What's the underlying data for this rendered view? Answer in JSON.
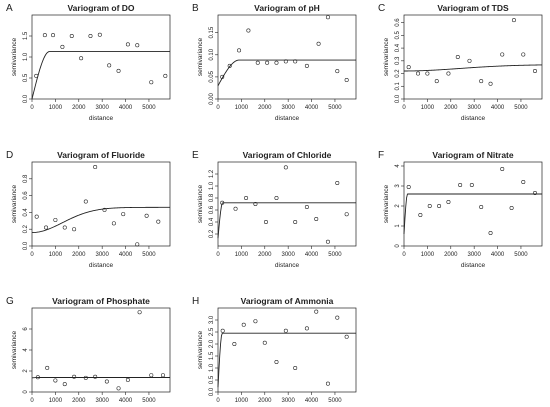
{
  "chart_data": [
    {
      "type": "scatter",
      "letter": "A",
      "title": "Variogram of DO",
      "xlabel": "distance",
      "ylabel": "semivariance",
      "xlim": [
        0,
        5900
      ],
      "ylim": [
        0,
        2.0
      ],
      "xticks": [
        0,
        1000,
        2000,
        3000,
        4000,
        5000
      ],
      "xticklabels": [
        "0",
        "1000",
        "2000",
        "3000",
        "4000",
        "5000"
      ],
      "yticks": [
        0,
        0.5,
        1.0,
        1.5
      ],
      "yticklabels": [
        "0.0",
        "0.5",
        "1.0",
        "1.5"
      ],
      "points": [
        [
          180,
          0.55
        ],
        [
          550,
          1.52
        ],
        [
          900,
          1.52
        ],
        [
          1300,
          1.24
        ],
        [
          1700,
          1.5
        ],
        [
          2100,
          0.97
        ],
        [
          2500,
          1.5
        ],
        [
          2900,
          1.53
        ],
        [
          3300,
          0.8
        ],
        [
          3700,
          0.67
        ],
        [
          4100,
          1.3
        ],
        [
          4500,
          1.28
        ],
        [
          5100,
          0.4
        ],
        [
          5700,
          0.55
        ]
      ],
      "model": {
        "nugget": 0.0,
        "sill": 1.13,
        "range": 750,
        "kind": "spherical"
      }
    },
    {
      "type": "scatter",
      "letter": "B",
      "title": "Variogram of pH",
      "xlabel": "distance",
      "ylabel": "semivariance",
      "xlim": [
        0,
        5900
      ],
      "ylim": [
        0,
        0.19
      ],
      "xticks": [
        0,
        1000,
        2000,
        3000,
        4000,
        5000
      ],
      "xticklabels": [
        "0",
        "1000",
        "2000",
        "3000",
        "4000",
        "5000"
      ],
      "yticks": [
        0,
        0.05,
        0.1,
        0.15
      ],
      "yticklabels": [
        "0.00",
        "0.05",
        "0.10",
        "0.15"
      ],
      "points": [
        [
          180,
          0.05
        ],
        [
          500,
          0.075
        ],
        [
          900,
          0.11
        ],
        [
          1300,
          0.155
        ],
        [
          1700,
          0.082
        ],
        [
          2100,
          0.082
        ],
        [
          2500,
          0.082
        ],
        [
          2900,
          0.085
        ],
        [
          3300,
          0.085
        ],
        [
          3800,
          0.075
        ],
        [
          4300,
          0.125
        ],
        [
          4700,
          0.185
        ],
        [
          5100,
          0.063
        ],
        [
          5500,
          0.043
        ]
      ],
      "model": {
        "nugget": 0.03,
        "sill": 0.088,
        "range": 900,
        "kind": "spherical"
      }
    },
    {
      "type": "scatter",
      "letter": "C",
      "title": "Variogram of TDS",
      "xlabel": "distance",
      "ylabel": "semivariance",
      "xlim": [
        0,
        5900
      ],
      "ylim": [
        0,
        0.66
      ],
      "xticks": [
        0,
        1000,
        2000,
        3000,
        4000,
        5000
      ],
      "xticklabels": [
        "0",
        "1000",
        "2000",
        "3000",
        "4000",
        "5000"
      ],
      "yticks": [
        0,
        0.1,
        0.2,
        0.3,
        0.4,
        0.5,
        0.6
      ],
      "yticklabels": [
        "0.0",
        "0.1",
        "0.2",
        "0.3",
        "0.4",
        "0.5",
        "0.6"
      ],
      "points": [
        [
          200,
          0.25
        ],
        [
          600,
          0.2
        ],
        [
          1000,
          0.2
        ],
        [
          1400,
          0.14
        ],
        [
          1900,
          0.2
        ],
        [
          2300,
          0.33
        ],
        [
          2800,
          0.3
        ],
        [
          3300,
          0.14
        ],
        [
          3700,
          0.12
        ],
        [
          4200,
          0.35
        ],
        [
          4700,
          0.62
        ],
        [
          5100,
          0.35
        ],
        [
          5600,
          0.22
        ]
      ],
      "model": {
        "nugget": 0.22,
        "sill": 0.27,
        "range": 5800,
        "kind": "gaussian"
      }
    },
    {
      "type": "scatter",
      "letter": "D",
      "title": "Variogram of Fluoride",
      "xlabel": "distance",
      "ylabel": "semivariance",
      "xlim": [
        0,
        5900
      ],
      "ylim": [
        0,
        1.0
      ],
      "xticks": [
        0,
        1000,
        2000,
        3000,
        4000,
        5000
      ],
      "xticklabels": [
        "0",
        "1000",
        "2000",
        "3000",
        "4000",
        "5000"
      ],
      "yticks": [
        0,
        0.2,
        0.4,
        0.6,
        0.8
      ],
      "yticklabels": [
        "0.0",
        "0.2",
        "0.4",
        "0.6",
        "0.8"
      ],
      "points": [
        [
          200,
          0.35
        ],
        [
          600,
          0.22
        ],
        [
          1000,
          0.31
        ],
        [
          1400,
          0.22
        ],
        [
          1800,
          0.2
        ],
        [
          2300,
          0.53
        ],
        [
          2700,
          0.94
        ],
        [
          3100,
          0.43
        ],
        [
          3500,
          0.27
        ],
        [
          3900,
          0.38
        ],
        [
          4500,
          0.02
        ],
        [
          4900,
          0.36
        ],
        [
          5400,
          0.29
        ]
      ],
      "model": {
        "nugget": 0.16,
        "sill": 0.46,
        "range": 3200,
        "kind": "gaussian"
      }
    },
    {
      "type": "scatter",
      "letter": "E",
      "title": "Variogram of Chloride",
      "xlabel": "distance",
      "ylabel": "semivariance",
      "xlim": [
        0,
        5900
      ],
      "ylim": [
        0,
        1.4
      ],
      "xticks": [
        0,
        1000,
        2000,
        3000,
        4000,
        5000
      ],
      "xticklabels": [
        "0",
        "1000",
        "2000",
        "3000",
        "4000",
        "5000"
      ],
      "yticks": [
        0.2,
        0.4,
        0.6,
        0.8,
        1.0,
        1.2
      ],
      "yticklabels": [
        "0.2",
        "0.4",
        "0.6",
        "0.8",
        "1.0",
        "1.2"
      ],
      "points": [
        [
          180,
          0.72
        ],
        [
          750,
          0.62
        ],
        [
          1200,
          0.8
        ],
        [
          1600,
          0.7
        ],
        [
          2050,
          0.4
        ],
        [
          2500,
          0.8
        ],
        [
          2900,
          1.31
        ],
        [
          3300,
          0.4
        ],
        [
          3800,
          0.65
        ],
        [
          4200,
          0.45
        ],
        [
          4700,
          0.07
        ],
        [
          5100,
          1.05
        ],
        [
          5500,
          0.53
        ]
      ],
      "model": {
        "nugget": 0.13,
        "sill": 0.72,
        "range": 200,
        "kind": "spherical"
      }
    },
    {
      "type": "scatter",
      "letter": "F",
      "title": "Variogram of Nitrate",
      "xlabel": "distance",
      "ylabel": "semivariance",
      "xlim": [
        0,
        5900
      ],
      "ylim": [
        0,
        4.2
      ],
      "xticks": [
        0,
        1000,
        2000,
        3000,
        4000,
        5000
      ],
      "xticklabels": [
        "0",
        "1000",
        "2000",
        "3000",
        "4000",
        "5000"
      ],
      "yticks": [
        0,
        1,
        2,
        3,
        4
      ],
      "yticklabels": [
        "0",
        "1",
        "2",
        "3",
        "4"
      ],
      "points": [
        [
          200,
          2.95
        ],
        [
          700,
          1.55
        ],
        [
          1100,
          2.0
        ],
        [
          1500,
          2.0
        ],
        [
          1900,
          2.2
        ],
        [
          2400,
          3.05
        ],
        [
          2900,
          3.05
        ],
        [
          3300,
          1.95
        ],
        [
          3700,
          0.65
        ],
        [
          4200,
          3.85
        ],
        [
          4600,
          1.9
        ],
        [
          5100,
          3.2
        ],
        [
          5600,
          2.65
        ]
      ],
      "model": {
        "nugget": 0.6,
        "sill": 2.6,
        "range": 150,
        "kind": "spherical"
      }
    },
    {
      "type": "scatter",
      "letter": "G",
      "title": "Variogram of Phosphate",
      "xlabel": "distance",
      "ylabel": "semivariance",
      "xlim": [
        0,
        5900
      ],
      "ylim": [
        0,
        8.0
      ],
      "xticks": [
        0,
        1000,
        2000,
        3000,
        4000,
        5000
      ],
      "xticklabels": [
        "0",
        "1000",
        "2000",
        "3000",
        "4000",
        "5000"
      ],
      "yticks": [
        0,
        2,
        4,
        6
      ],
      "yticklabels": [
        "0",
        "2",
        "4",
        "6"
      ],
      "points": [
        [
          250,
          1.4
        ],
        [
          650,
          2.3
        ],
        [
          1000,
          1.1
        ],
        [
          1400,
          0.75
        ],
        [
          1800,
          1.45
        ],
        [
          2300,
          1.35
        ],
        [
          2700,
          1.45
        ],
        [
          3200,
          1.0
        ],
        [
          3700,
          0.35
        ],
        [
          4100,
          1.15
        ],
        [
          4600,
          7.6
        ],
        [
          5100,
          1.6
        ],
        [
          5600,
          1.6
        ]
      ],
      "model": {
        "nugget": 1.35,
        "sill": 1.38,
        "range": 300,
        "kind": "spherical"
      }
    },
    {
      "type": "scatter",
      "letter": "H",
      "title": "Variogram of Ammonia",
      "xlabel": "distance",
      "ylabel": "semivariance",
      "xlim": [
        0,
        5900
      ],
      "ylim": [
        0,
        3.5
      ],
      "xticks": [
        0,
        1000,
        2000,
        3000,
        4000,
        5000
      ],
      "xticklabels": [
        "0",
        "1000",
        "2000",
        "3000",
        "4000",
        "5000"
      ],
      "yticks": [
        0,
        0.5,
        1.0,
        1.5,
        2.0,
        2.5,
        3.0
      ],
      "yticklabels": [
        "0.0",
        "0.5",
        "1.0",
        "1.5",
        "2.0",
        "2.5",
        "3.0"
      ],
      "points": [
        [
          200,
          2.55
        ],
        [
          700,
          2.0
        ],
        [
          1100,
          2.8
        ],
        [
          1600,
          2.95
        ],
        [
          2000,
          2.05
        ],
        [
          2500,
          1.25
        ],
        [
          2900,
          2.55
        ],
        [
          3300,
          1.0
        ],
        [
          3800,
          2.65
        ],
        [
          4200,
          3.35
        ],
        [
          4700,
          0.35
        ],
        [
          5100,
          3.1
        ],
        [
          5500,
          2.3
        ]
      ],
      "model": {
        "nugget": 0.2,
        "sill": 2.45,
        "range": 180,
        "kind": "spherical"
      }
    }
  ]
}
